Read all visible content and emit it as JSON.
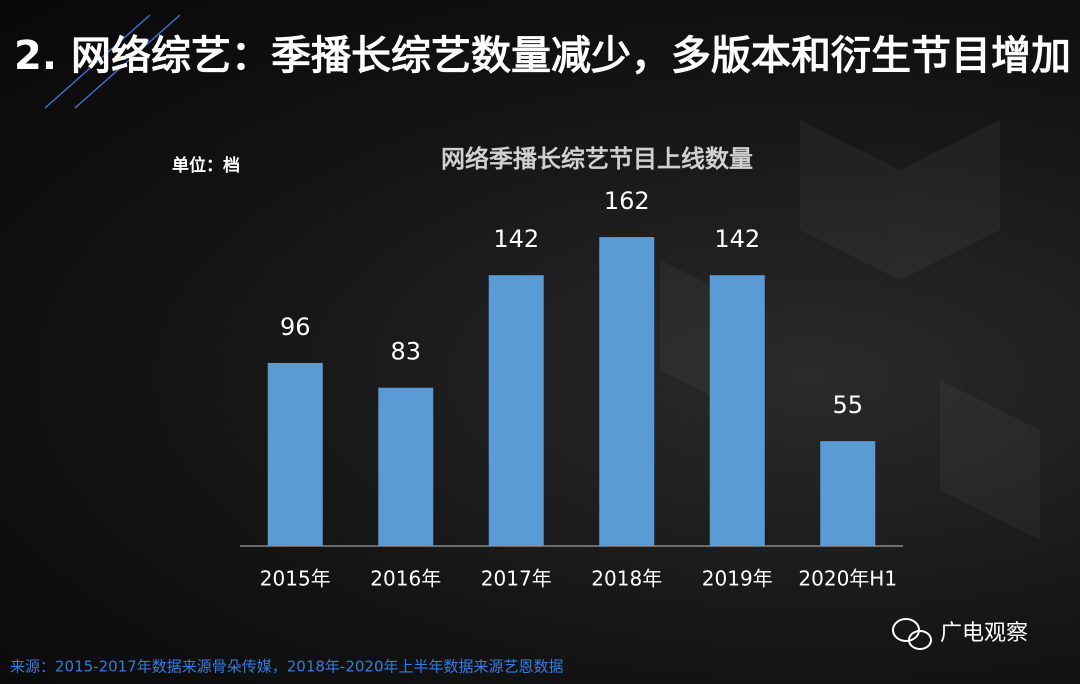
{
  "header": {
    "title": "2. 网络综艺：季播长综艺数量减少，多版本和衍生节目增加"
  },
  "chart_data": {
    "type": "bar",
    "title": "网络季播长综艺节目上线数量",
    "unit": "单位：档",
    "categories": [
      "2015年",
      "2016年",
      "2017年",
      "2018年",
      "2019年",
      "2020年H1"
    ],
    "values": [
      96,
      83,
      142,
      162,
      142,
      55
    ],
    "color": "#5b9bd5"
  },
  "footer": {
    "source": "来源：2015-2017年数据来源骨朵传媒，2018年-2020年上半年数据来源艺恩数据",
    "watermark": "广电观察"
  }
}
